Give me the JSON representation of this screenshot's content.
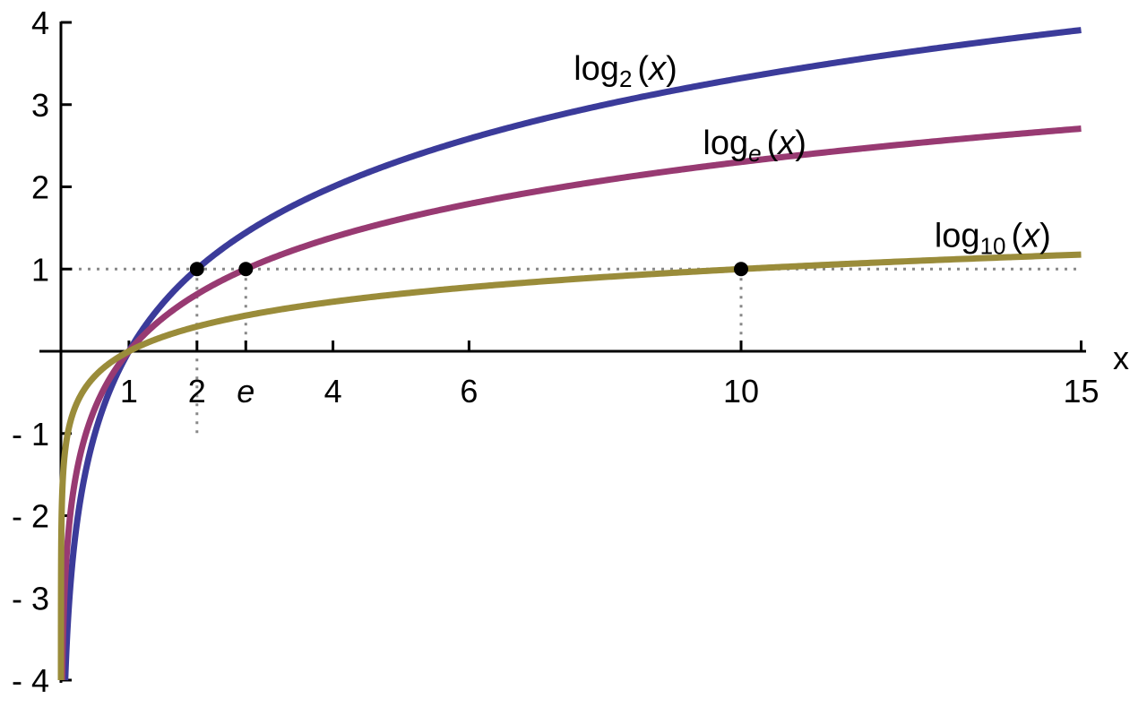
{
  "chart_data": {
    "type": "line",
    "title": "",
    "xlabel": "x",
    "ylabel": "",
    "xlim": [
      -0.3,
      15.4
    ],
    "ylim": [
      -4,
      4
    ],
    "grid": false,
    "legend": "inline labels on curves",
    "x_ticks": [
      {
        "value": 1,
        "label": "1"
      },
      {
        "value": 2,
        "label": "2"
      },
      {
        "value": 2.718,
        "label": "e",
        "italic": true
      },
      {
        "value": 4,
        "label": "4"
      },
      {
        "value": 6,
        "label": "6"
      },
      {
        "value": 10,
        "label": "10"
      },
      {
        "value": 15,
        "label": "15"
      }
    ],
    "y_ticks": [
      {
        "value": 4,
        "label": "4"
      },
      {
        "value": 3,
        "label": "3"
      },
      {
        "value": 2,
        "label": "2"
      },
      {
        "value": 1,
        "label": "1"
      },
      {
        "value": -1,
        "label": "- 1"
      },
      {
        "value": -2,
        "label": "- 2"
      },
      {
        "value": -3,
        "label": "- 3"
      },
      {
        "value": -4,
        "label": "- 4"
      }
    ],
    "series": [
      {
        "name": "log2(x)",
        "label_main": "log",
        "label_sub": "2",
        "label_arg": "(x)",
        "base": 2,
        "color": "#3b3b9a",
        "x_range": [
          0.0625,
          15
        ],
        "label_pos": [
          8.3,
          3.3
        ]
      },
      {
        "name": "loge(x)",
        "label_main": "log",
        "label_sub": "e",
        "label_arg": "(x)",
        "base": 2.718281828,
        "color": "#983a72",
        "x_range": [
          0.0183,
          15
        ],
        "label_pos": [
          10.2,
          2.4
        ]
      },
      {
        "name": "log10(x)",
        "label_main": "log",
        "label_sub": "10",
        "label_arg": "(x)",
        "base": 10,
        "color": "#9a8c3a",
        "x_range": [
          0.0001,
          15
        ],
        "label_pos": [
          13.7,
          1.27
        ]
      }
    ],
    "reference_line_y": 1,
    "marked_points": [
      {
        "x": 2,
        "y": 1
      },
      {
        "x": 2.718,
        "y": 1
      },
      {
        "x": 10,
        "y": 1
      }
    ]
  }
}
